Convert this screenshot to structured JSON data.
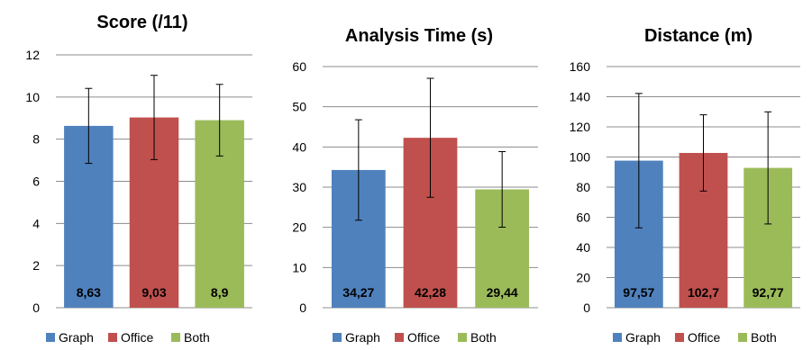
{
  "chart_data": [
    {
      "type": "bar",
      "title": "Score (/11)",
      "categories": [
        "Graph",
        "Office",
        "Both"
      ],
      "values": [
        8.63,
        9.03,
        8.9
      ],
      "value_labels": [
        "8,63",
        "9,03",
        "8,9"
      ],
      "error": [
        1.78,
        2.0,
        1.7
      ],
      "ylim": [
        0,
        12
      ],
      "yticks": [
        0,
        2,
        4,
        6,
        8,
        10,
        12
      ],
      "grid": true,
      "legend": "bottom",
      "colors": [
        "#4F81BD",
        "#C0504D",
        "#9BBB59"
      ]
    },
    {
      "type": "bar",
      "title": "Analysis Time (s)",
      "categories": [
        "Graph",
        "Office",
        "Both"
      ],
      "values": [
        34.27,
        42.28,
        29.44
      ],
      "value_labels": [
        "34,27",
        "42,28",
        "29,44"
      ],
      "error": [
        12.5,
        14.8,
        9.4
      ],
      "ylim": [
        0,
        60
      ],
      "yticks": [
        0,
        10,
        20,
        30,
        40,
        50,
        60
      ],
      "grid": true,
      "legend": "bottom",
      "colors": [
        "#4F81BD",
        "#C0504D",
        "#9BBB59"
      ]
    },
    {
      "type": "bar",
      "title": "Distance (m)",
      "categories": [
        "Graph",
        "Office",
        "Both"
      ],
      "values": [
        97.57,
        102.7,
        92.77
      ],
      "value_labels": [
        "97,57",
        "102,7",
        "92,77"
      ],
      "error": [
        44.6,
        25.3,
        37.2
      ],
      "ylim": [
        0,
        160
      ],
      "yticks": [
        0,
        20,
        40,
        60,
        80,
        100,
        120,
        140,
        160
      ],
      "grid": true,
      "legend": "bottom",
      "colors": [
        "#4F81BD",
        "#C0504D",
        "#9BBB59"
      ]
    }
  ]
}
